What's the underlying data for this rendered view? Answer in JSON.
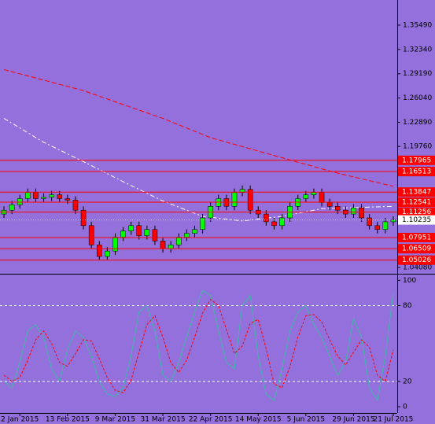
{
  "chart_data": [
    {
      "type": "candlestick",
      "xlim": [
        -0.5,
        49.5
      ],
      "ylim": [
        1.0326,
        1.3875
      ],
      "yticks": [
        {
          "value": 1.3549,
          "label": "1.35490"
        },
        {
          "value": 1.3234,
          "label": "1.32340"
        },
        {
          "value": 1.2919,
          "label": "1.29190"
        },
        {
          "value": 1.2604,
          "label": "1.26040"
        },
        {
          "value": 1.2289,
          "label": "1.22890"
        },
        {
          "value": 1.1976,
          "label": "1.19760"
        },
        {
          "value": 1.0408,
          "label": "1.04080"
        }
      ],
      "levels": [
        {
          "value": 1.17965,
          "label": "1.17965"
        },
        {
          "value": 1.16513,
          "label": "1.16513"
        },
        {
          "value": 1.13847,
          "label": "1.13847"
        },
        {
          "value": 1.12541,
          "label": "1.12541"
        },
        {
          "value": 1.11256,
          "label": "1.11256"
        },
        {
          "value": 1.07951,
          "label": "1.07951"
        },
        {
          "value": 1.06509,
          "label": "1.06509"
        },
        {
          "value": 1.05026,
          "label": "1.05026"
        }
      ],
      "level_color": "#ff0000",
      "last_price": {
        "value": 1.10235,
        "label": "1.10235"
      },
      "up_color": "#00ff00",
      "down_color": "#ff0000",
      "open": [
        1.11,
        1.115,
        1.122,
        1.13,
        1.138,
        1.13,
        1.132,
        1.135,
        1.13,
        1.128,
        1.115,
        1.095,
        1.07,
        1.055,
        1.062,
        1.08,
        1.088,
        1.095,
        1.082,
        1.09,
        1.075,
        1.065,
        1.07,
        1.08,
        1.085,
        1.09,
        1.105,
        1.12,
        1.13,
        1.12,
        1.138,
        1.142,
        1.115,
        1.11,
        1.1,
        1.095,
        1.105,
        1.12,
        1.13,
        1.135,
        1.138,
        1.125,
        1.12,
        1.115,
        1.11,
        1.118,
        1.105,
        1.095,
        1.09,
        1.1
      ],
      "high": [
        1.12,
        1.127,
        1.135,
        1.143,
        1.143,
        1.137,
        1.14,
        1.14,
        1.135,
        1.133,
        1.12,
        1.1,
        1.075,
        1.067,
        1.085,
        1.093,
        1.1,
        1.1,
        1.095,
        1.095,
        1.08,
        1.075,
        1.085,
        1.09,
        1.095,
        1.11,
        1.125,
        1.135,
        1.135,
        1.143,
        1.147,
        1.147,
        1.12,
        1.115,
        1.105,
        1.11,
        1.125,
        1.135,
        1.14,
        1.143,
        1.143,
        1.13,
        1.125,
        1.12,
        1.123,
        1.123,
        1.11,
        1.1,
        1.105,
        1.107
      ],
      "low": [
        1.105,
        1.11,
        1.117,
        1.125,
        1.125,
        1.125,
        1.127,
        1.125,
        1.123,
        1.11,
        1.09,
        1.065,
        1.05,
        1.05,
        1.057,
        1.075,
        1.083,
        1.077,
        1.077,
        1.07,
        1.06,
        1.06,
        1.065,
        1.075,
        1.08,
        1.085,
        1.1,
        1.115,
        1.115,
        1.115,
        1.133,
        1.11,
        1.105,
        1.095,
        1.09,
        1.09,
        1.1,
        1.115,
        1.125,
        1.13,
        1.12,
        1.115,
        1.11,
        1.105,
        1.105,
        1.1,
        1.09,
        1.085,
        1.085,
        1.095
      ],
      "close": [
        1.115,
        1.122,
        1.13,
        1.138,
        1.13,
        1.132,
        1.135,
        1.13,
        1.128,
        1.115,
        1.095,
        1.07,
        1.055,
        1.062,
        1.08,
        1.088,
        1.095,
        1.082,
        1.09,
        1.075,
        1.065,
        1.07,
        1.08,
        1.085,
        1.09,
        1.105,
        1.12,
        1.13,
        1.12,
        1.138,
        1.142,
        1.115,
        1.11,
        1.1,
        1.095,
        1.105,
        1.12,
        1.13,
        1.135,
        1.138,
        1.125,
        1.12,
        1.115,
        1.11,
        1.118,
        1.105,
        1.095,
        1.09,
        1.1,
        1.10235
      ],
      "lines": [
        {
          "color": "#ff0000",
          "x": [
            0,
            10,
            20,
            26,
            35,
            42,
            49
          ],
          "values": [
            1.2973,
            1.27,
            1.234,
            1.209,
            1.183,
            1.163,
            1.146
          ]
        },
        {
          "color": "#ffffff",
          "x": [
            0,
            5,
            10,
            15,
            20,
            25,
            30,
            35,
            40,
            49
          ],
          "values": [
            1.234,
            1.203,
            1.178,
            1.152,
            1.127,
            1.107,
            1.101,
            1.107,
            1.117,
            1.12
          ]
        }
      ]
    },
    {
      "type": "line",
      "xlim": [
        -0.5,
        49.5
      ],
      "ylim": [
        -5,
        104
      ],
      "yticks": [
        0,
        20,
        80,
        100
      ],
      "levels": [
        20,
        80
      ],
      "xticks": [
        {
          "value": 2,
          "label": "2 Jan 2015"
        },
        {
          "value": 8,
          "label": "13 Feb 2015"
        },
        {
          "value": 14,
          "label": "9 Mar 2015"
        },
        {
          "value": 20,
          "label": "31 Mar 2015"
        },
        {
          "value": 26,
          "label": "22 Apr 2015"
        },
        {
          "value": 32,
          "label": "14 May 2015"
        },
        {
          "value": 38,
          "label": "5 Jun 2015"
        },
        {
          "value": 44,
          "label": "29 Jun 2015"
        },
        {
          "value": 49,
          "label": "21 Jul 2015"
        }
      ],
      "series": [
        {
          "color": "#3cb8a8",
          "values": [
            20,
            15,
            35,
            60,
            65,
            55,
            30,
            20,
            45,
            60,
            55,
            40,
            20,
            10,
            8,
            15,
            40,
            75,
            80,
            60,
            25,
            20,
            35,
            55,
            75,
            92,
            88,
            60,
            35,
            30,
            80,
            88,
            40,
            10,
            5,
            30,
            60,
            75,
            80,
            65,
            55,
            40,
            25,
            35,
            70,
            55,
            15,
            5,
            40,
            90
          ]
        },
        {
          "color": "#ff0000",
          "values": [
            25,
            20,
            23,
            37,
            53,
            60,
            50,
            35,
            32,
            42,
            53,
            52,
            38,
            23,
            13,
            11,
            21,
            43,
            65,
            72,
            55,
            35,
            27,
            37,
            55,
            74,
            85,
            80,
            61,
            42,
            48,
            66,
            69,
            46,
            18,
            15,
            32,
            55,
            72,
            73,
            67,
            53,
            40,
            33,
            43,
            53,
            47,
            25,
            20,
            45
          ]
        }
      ]
    }
  ]
}
